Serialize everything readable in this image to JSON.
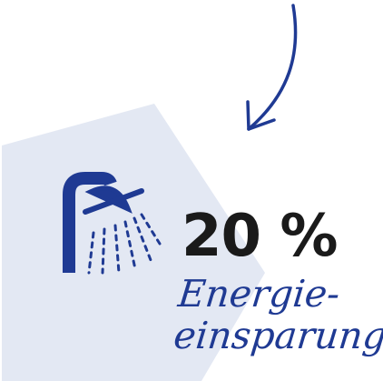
{
  "colors": {
    "background": "#ffffff",
    "pentagon": "#e3e8f3",
    "accent": "#1f3a93",
    "text_dark": "#1a1a1a"
  },
  "icons": {
    "arrow": "curved-arrow-down-left-icon",
    "shower": "shower-head-icon"
  },
  "stat": {
    "value": "20 %",
    "label_line1": "Energie-",
    "label_line2": "einsparung"
  }
}
